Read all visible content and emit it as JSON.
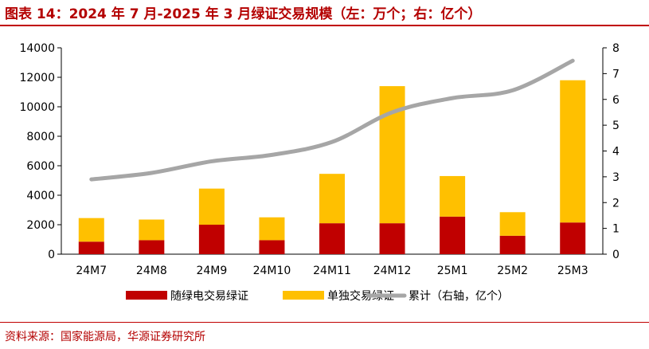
{
  "title": "图表 14：2024 年 7 月-2025 年 3 月绿证交易规模（左：万个；右：亿个）",
  "source": "资料来源：国家能源局，华源证券研究所",
  "colors": {
    "accent": "#b40000",
    "series1": "#c00000",
    "series2": "#ffc000",
    "series3": "#a6a6a6"
  },
  "chart_data": {
    "type": "bar",
    "stacked": true,
    "categories": [
      "24M7",
      "24M8",
      "24M9",
      "24M10",
      "24M11",
      "24M12",
      "25M1",
      "25M2",
      "25M3"
    ],
    "series": [
      {
        "name": "随绿电交易绿证",
        "type": "bar",
        "axis": "left",
        "values": [
          850,
          950,
          2000,
          950,
          2100,
          2100,
          2550,
          1250,
          2150
        ]
      },
      {
        "name": "单独交易绿证",
        "type": "bar",
        "axis": "left",
        "values": [
          1600,
          1400,
          2450,
          1550,
          3350,
          9300,
          2750,
          1600,
          9650
        ]
      },
      {
        "name": "累计（右轴，亿个）",
        "type": "line",
        "axis": "right",
        "values": [
          2.9,
          3.15,
          3.6,
          3.85,
          4.35,
          5.5,
          6.05,
          6.35,
          7.5
        ]
      }
    ],
    "y_left": {
      "min": 0,
      "max": 14000,
      "ticks": [
        "0",
        "2000",
        "4000",
        "6000",
        "8000",
        "10000",
        "12000",
        "14000"
      ]
    },
    "y_right": {
      "min": 0,
      "max": 8,
      "ticks": [
        "0",
        "1",
        "2",
        "3",
        "4",
        "5",
        "6",
        "7",
        "8"
      ]
    },
    "legend_position": "bottom",
    "grid": false
  }
}
